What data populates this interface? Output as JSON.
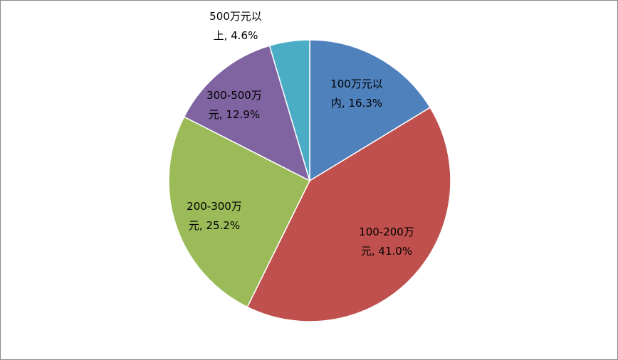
{
  "chart_data": {
    "type": "pie",
    "title": "",
    "legend": "none",
    "slices": [
      {
        "label_line1": "100万元以",
        "label_line2": "内, 16.3%",
        "category": "100万元以内",
        "value": 16.3,
        "color": "#4F81BD"
      },
      {
        "label_line1": "100-200万",
        "label_line2": "元, 41.0%",
        "category": "100-200万元",
        "value": 41.0,
        "color": "#C0504D"
      },
      {
        "label_line1": "200-300万",
        "label_line2": "元, 25.2%",
        "category": "200-300万元",
        "value": 25.2,
        "color": "#9BBB59"
      },
      {
        "label_line1": "300-500万",
        "label_line2": "元, 12.9%",
        "category": "300-500万元",
        "value": 12.9,
        "color": "#8064A2"
      },
      {
        "label_line1": "500万元以",
        "label_line2": "上, 4.6%",
        "category": "500万元以上",
        "value": 4.6,
        "color": "#4BACC6"
      }
    ]
  }
}
